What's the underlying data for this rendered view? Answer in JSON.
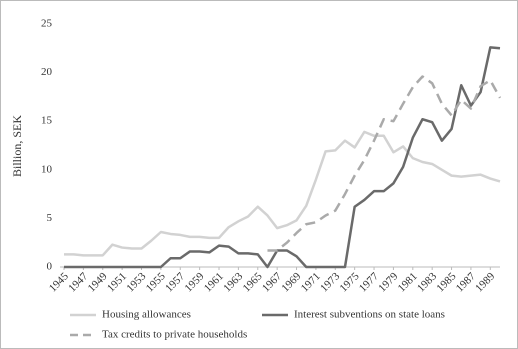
{
  "chart_data": {
    "type": "line",
    "y_label": "Billion, SEK",
    "x": [
      1945,
      1946,
      1947,
      1948,
      1949,
      1950,
      1951,
      1952,
      1953,
      1954,
      1955,
      1956,
      1957,
      1958,
      1959,
      1960,
      1961,
      1962,
      1963,
      1964,
      1965,
      1966,
      1967,
      1968,
      1969,
      1970,
      1971,
      1972,
      1973,
      1974,
      1975,
      1976,
      1977,
      1978,
      1979,
      1980,
      1981,
      1982,
      1983,
      1984,
      1985,
      1986,
      1987,
      1988,
      1989,
      1990
    ],
    "xlim": [
      1945,
      1990
    ],
    "xticks": [
      1945,
      1947,
      1949,
      1951,
      1953,
      1955,
      1957,
      1959,
      1961,
      1963,
      1965,
      1967,
      1969,
      1971,
      1973,
      1975,
      1977,
      1979,
      1981,
      1983,
      1985,
      1987,
      1989
    ],
    "ylim": [
      0,
      25
    ],
    "yticks": [
      0,
      5,
      10,
      15,
      20,
      25
    ],
    "grid": false,
    "series": [
      {
        "name": "Housing allowances",
        "color": "#d2d2d2",
        "dashed": false,
        "values": [
          1.3,
          1.3,
          1.2,
          1.2,
          1.2,
          2.3,
          2.0,
          1.9,
          1.9,
          2.7,
          3.6,
          3.4,
          3.3,
          3.1,
          3.1,
          3.0,
          3.0,
          4.1,
          4.7,
          5.2,
          6.2,
          5.3,
          4.0,
          4.3,
          4.8,
          6.3,
          9.0,
          11.9,
          12.0,
          13.0,
          12.3,
          13.9,
          13.5,
          13.5,
          11.8,
          12.4,
          11.2,
          10.8,
          10.6,
          10.0,
          9.4,
          9.3,
          9.4,
          9.5,
          9.1,
          8.8
        ]
      },
      {
        "name": "Interest subventions on state loans",
        "color": "#6a6a6a",
        "dashed": false,
        "values": [
          0,
          0,
          0,
          0,
          0,
          0,
          0,
          0,
          0,
          0,
          0,
          0.9,
          0.9,
          1.6,
          1.6,
          1.5,
          2.2,
          2.1,
          1.4,
          1.4,
          1.3,
          0,
          1.7,
          1.7,
          1.1,
          0,
          0,
          0,
          0,
          0,
          6.2,
          6.9,
          7.8,
          7.8,
          8.6,
          10.3,
          13.3,
          15.2,
          14.9,
          13.0,
          14.2,
          18.7,
          16.6,
          18.0,
          22.6,
          22.5
        ]
      },
      {
        "name": "Tax credits to private households",
        "color": "#aaaaaa",
        "dashed": true,
        "values": [
          null,
          null,
          null,
          null,
          null,
          null,
          null,
          null,
          null,
          null,
          null,
          null,
          null,
          null,
          null,
          null,
          null,
          null,
          null,
          null,
          null,
          1.7,
          1.7,
          2.5,
          3.5,
          4.4,
          4.6,
          5.3,
          5.8,
          7.5,
          9.4,
          11.0,
          13.0,
          15.2,
          15.0,
          16.8,
          18.5,
          19.6,
          18.9,
          16.8,
          15.6,
          17.2,
          16.3,
          18.6,
          19.2,
          17.4
        ]
      }
    ]
  }
}
